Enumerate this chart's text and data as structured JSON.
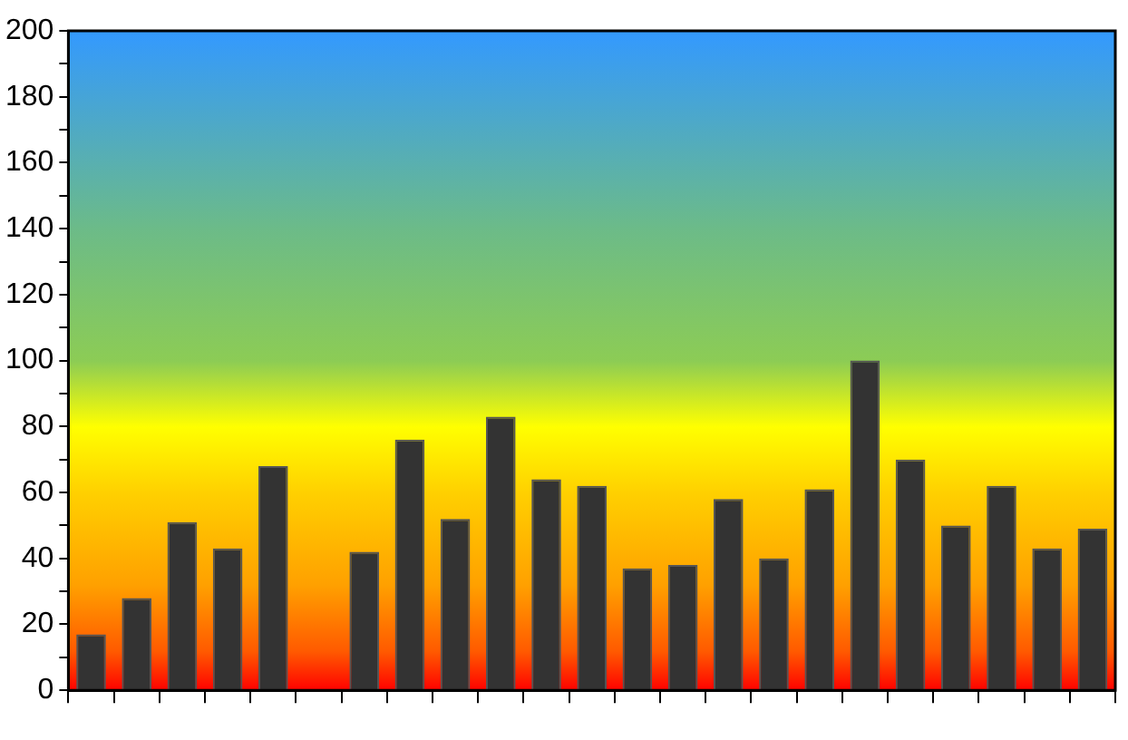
{
  "chart_data": {
    "type": "bar",
    "categories": [
      null,
      null,
      null,
      null,
      null,
      null,
      null,
      null,
      null,
      null,
      null,
      null,
      null,
      null,
      null,
      null,
      null,
      null,
      null,
      null,
      null,
      null,
      null
    ],
    "values": [
      17,
      28,
      51,
      43,
      68,
      null,
      42,
      76,
      52,
      83,
      64,
      62,
      37,
      38,
      58,
      40,
      61,
      100,
      70,
      50,
      62,
      43,
      49
    ],
    "color": "#333333",
    "ylim": [
      0,
      200
    ],
    "yticks": [
      0,
      {
        "value": 10,
        "label": null
      },
      20,
      {
        "value": 30,
        "label": null
      },
      40,
      {
        "value": 50,
        "label": null
      },
      60,
      {
        "value": 70,
        "label": null
      },
      80,
      {
        "value": 90,
        "label": null
      },
      100,
      {
        "value": 110,
        "label": null
      },
      120,
      {
        "value": 130,
        "label": null
      },
      140,
      {
        "value": 150,
        "label": null
      },
      160,
      {
        "value": 170,
        "label": null
      },
      180,
      {
        "value": 190,
        "label": null
      },
      200
    ],
    "grid": false,
    "legend": false
  }
}
